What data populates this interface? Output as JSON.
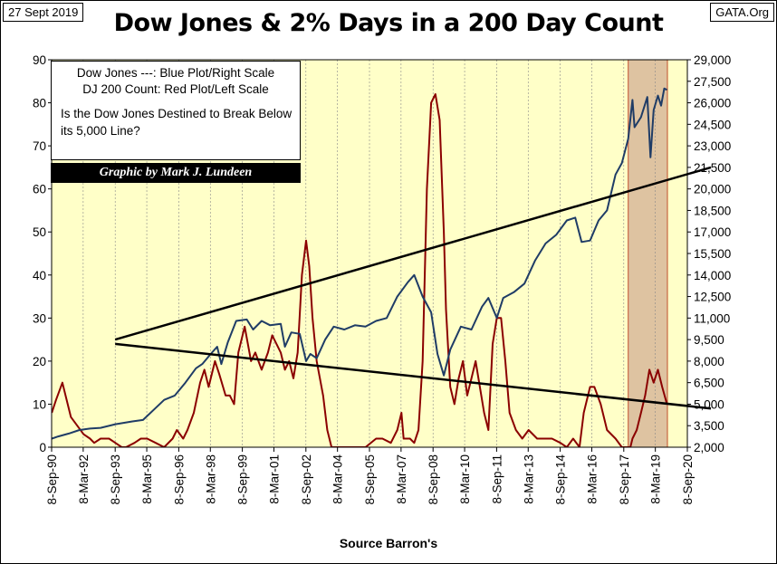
{
  "header": {
    "date": "27 Sept 2019",
    "source": "GATA.Org",
    "title": "Dow Jones & 2% Days in a 200 Day Count"
  },
  "legend": {
    "line1": "Dow Jones ---: Blue Plot/Right Scale",
    "line2": "DJ 200 Count: Red Plot/Left Scale",
    "question": "Is the Dow Jones Destined to Break Below its 5,000 Line?"
  },
  "credit": "Graphic by Mark J. Lundeen",
  "colors": {
    "plot_bg": "#FFFFC8",
    "dow": "#1F3C66",
    "count": "#8B0000",
    "shade": "#D8B89A",
    "trend": "#000000"
  },
  "chart_data": {
    "type": "line",
    "title": "Dow Jones & 2% Days in a 200 Day Count",
    "xlabel": "Source Barron's",
    "ylabel_left": "DJ 200 Count",
    "ylabel_right": "Dow Jones",
    "x_range": [
      1990.69,
      2020.69
    ],
    "ylim_left": [
      0,
      90
    ],
    "ylim_right": [
      2000,
      29000
    ],
    "y_ticks_left": [
      "0",
      "10",
      "20",
      "30",
      "40",
      "50",
      "60",
      "70",
      "80",
      "90"
    ],
    "y_ticks_right": [
      "2,000",
      "3,500",
      "5,000",
      "6,500",
      "8,000",
      "9,500",
      "11,000",
      "12,500",
      "14,000",
      "15,500",
      "17,000",
      "18,500",
      "20,000",
      "21,500",
      "23,000",
      "24,500",
      "26,000",
      "27,500",
      "29,000"
    ],
    "x_ticks": [
      {
        "label": "8-Sep-90",
        "t": 1990.69
      },
      {
        "label": "8-Mar-92",
        "t": 1992.18
      },
      {
        "label": "8-Sep-93",
        "t": 1993.69
      },
      {
        "label": "8-Mar-95",
        "t": 1995.18
      },
      {
        "label": "8-Sep-96",
        "t": 1996.69
      },
      {
        "label": "8-Mar-98",
        "t": 1998.18
      },
      {
        "label": "8-Sep-99",
        "t": 1999.69
      },
      {
        "label": "8-Mar-01",
        "t": 2001.18
      },
      {
        "label": "8-Sep-02",
        "t": 2002.69
      },
      {
        "label": "8-Mar-04",
        "t": 2004.18
      },
      {
        "label": "8-Sep-05",
        "t": 2005.69
      },
      {
        "label": "8-Mar-07",
        "t": 2007.18
      },
      {
        "label": "8-Sep-08",
        "t": 2008.69
      },
      {
        "label": "8-Mar-10",
        "t": 2010.18
      },
      {
        "label": "8-Sep-11",
        "t": 2011.69
      },
      {
        "label": "8-Mar-13",
        "t": 2013.18
      },
      {
        "label": "8-Sep-14",
        "t": 2014.69
      },
      {
        "label": "8-Mar-16",
        "t": 2016.18
      },
      {
        "label": "8-Sep-17",
        "t": 2017.69
      },
      {
        "label": "8-Mar-19",
        "t": 2019.18
      },
      {
        "label": "8-Sep-20",
        "t": 2020.69
      }
    ],
    "shaded_region": [
      2017.9,
      2019.75
    ],
    "series": [
      {
        "name": "Dow Jones",
        "axis": "right",
        "t": [
          1990.7,
          1991.0,
          1991.5,
          1992.0,
          1992.5,
          1993.0,
          1993.7,
          1994.5,
          1995.0,
          1995.5,
          1996.0,
          1996.5,
          1997.0,
          1997.5,
          1997.8,
          1998.2,
          1998.5,
          1998.7,
          1999.0,
          1999.4,
          1999.9,
          2000.2,
          2000.6,
          2001.0,
          2001.5,
          2001.7,
          2002.0,
          2002.4,
          2002.7,
          2002.9,
          2003.2,
          2003.6,
          2004.0,
          2004.5,
          2005.0,
          2005.5,
          2006.0,
          2006.5,
          2007.0,
          2007.5,
          2007.8,
          2008.2,
          2008.6,
          2008.9,
          2009.2,
          2009.5,
          2010.0,
          2010.5,
          2011.0,
          2011.3,
          2011.7,
          2012.0,
          2012.5,
          2013.0,
          2013.5,
          2014.0,
          2014.5,
          2015.0,
          2015.4,
          2015.7,
          2016.1,
          2016.5,
          2016.9,
          2017.3,
          2017.6,
          2017.9,
          2018.1,
          2018.2,
          2018.5,
          2018.8,
          2018.95,
          2019.1,
          2019.3,
          2019.45,
          2019.6,
          2019.73
        ],
        "values": [
          2600,
          2750,
          2950,
          3200,
          3300,
          3350,
          3600,
          3800,
          3900,
          4600,
          5300,
          5600,
          6500,
          7500,
          7800,
          8500,
          9000,
          7800,
          9300,
          10800,
          10900,
          10200,
          10800,
          10500,
          10600,
          9000,
          10000,
          9900,
          8000,
          8500,
          8200,
          9500,
          10400,
          10200,
          10500,
          10400,
          10800,
          11000,
          12500,
          13500,
          14000,
          12500,
          11400,
          8500,
          7000,
          8800,
          10400,
          10200,
          11800,
          12400,
          11000,
          12400,
          12800,
          13400,
          15000,
          16200,
          16800,
          17800,
          18000,
          16300,
          16400,
          17800,
          18500,
          21000,
          21800,
          23500,
          26200,
          24300,
          25000,
          26400,
          22200,
          25500,
          26500,
          25800,
          27000,
          26900
        ]
      },
      {
        "name": "DJ 200 Count",
        "axis": "left",
        "t": [
          1990.7,
          1990.9,
          1991.2,
          1991.4,
          1991.6,
          1991.9,
          1992.2,
          1992.5,
          1992.7,
          1993.0,
          1993.4,
          1993.7,
          1994.0,
          1994.2,
          1994.6,
          1994.9,
          1995.2,
          1995.6,
          1996.0,
          1996.4,
          1996.6,
          1996.9,
          1997.1,
          1997.4,
          1997.7,
          1997.9,
          1998.1,
          1998.4,
          1998.6,
          1998.9,
          1999.1,
          1999.3,
          1999.5,
          1999.8,
          2000.1,
          2000.3,
          2000.6,
          2000.9,
          2001.1,
          2001.3,
          2001.5,
          2001.7,
          2001.9,
          2002.1,
          2002.3,
          2002.5,
          2002.7,
          2002.85,
          2003.0,
          2003.2,
          2003.5,
          2003.7,
          2003.9,
          2004.2,
          2004.6,
          2005.0,
          2005.5,
          2006.0,
          2006.3,
          2006.7,
          2007.0,
          2007.2,
          2007.3,
          2007.6,
          2007.8,
          2008.0,
          2008.2,
          2008.4,
          2008.6,
          2008.8,
          2009.0,
          2009.2,
          2009.3,
          2009.5,
          2009.7,
          2009.9,
          2010.1,
          2010.3,
          2010.5,
          2010.7,
          2010.9,
          2011.1,
          2011.3,
          2011.5,
          2011.7,
          2011.9,
          2012.1,
          2012.3,
          2012.6,
          2012.9,
          2013.2,
          2013.6,
          2014.0,
          2014.3,
          2014.7,
          2015.0,
          2015.3,
          2015.6,
          2015.8,
          2016.1,
          2016.3,
          2016.6,
          2016.9,
          2017.3,
          2017.6,
          2017.9,
          2018.0,
          2018.1,
          2018.3,
          2018.5,
          2018.7,
          2018.9,
          2019.1,
          2019.3,
          2019.5,
          2019.73
        ],
        "values": [
          8,
          11,
          15,
          11,
          7,
          5,
          3,
          2,
          1,
          2,
          2,
          1,
          0,
          0,
          1,
          2,
          2,
          1,
          0,
          2,
          4,
          2,
          4,
          8,
          15,
          18,
          14,
          20,
          17,
          12,
          12,
          10,
          22,
          28,
          20,
          22,
          18,
          22,
          26,
          24,
          22,
          18,
          20,
          16,
          22,
          40,
          48,
          42,
          30,
          20,
          12,
          4,
          0,
          0,
          0,
          0,
          0,
          2,
          2,
          1,
          4,
          8,
          2,
          2,
          1,
          4,
          20,
          60,
          80,
          82,
          76,
          50,
          32,
          14,
          10,
          16,
          20,
          12,
          16,
          20,
          14,
          8,
          4,
          24,
          30,
          30,
          20,
          8,
          4,
          2,
          4,
          2,
          2,
          2,
          1,
          0,
          2,
          0,
          8,
          14,
          14,
          10,
          4,
          2,
          0,
          0,
          0,
          2,
          4,
          8,
          12,
          18,
          15,
          18,
          14,
          10
        ]
      }
    ],
    "trendlines": [
      {
        "name": "upper trendline",
        "axis": "right",
        "points": [
          [
            1993.69,
            9500
          ],
          [
            2020.69,
            21500
          ]
        ]
      },
      {
        "name": "lower trendline",
        "axis": "right",
        "points": [
          [
            1993.69,
            9200
          ],
          [
            2020.69,
            4700
          ]
        ]
      }
    ]
  }
}
